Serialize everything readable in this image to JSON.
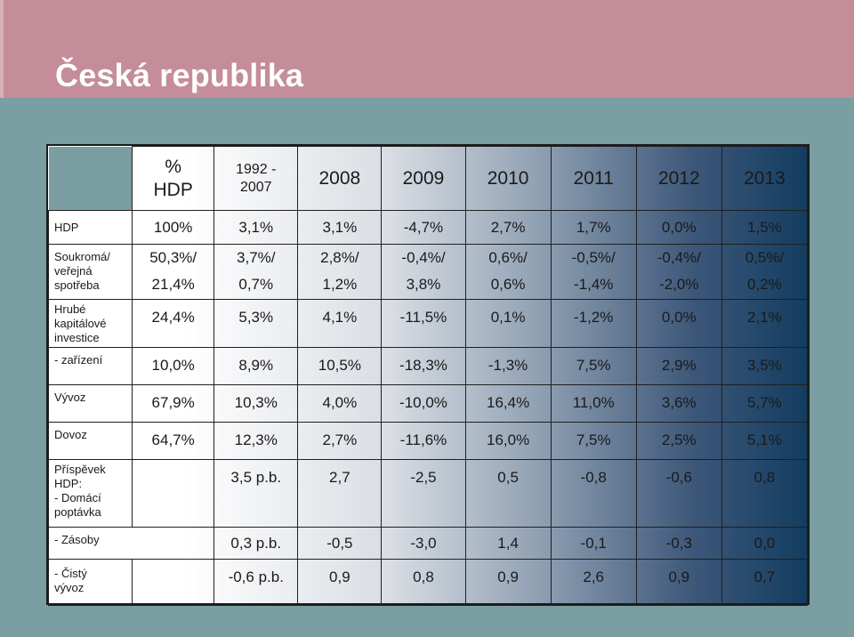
{
  "slide": {
    "title": "Česká republika"
  },
  "table": {
    "header": {
      "unit_line1": "%",
      "unit_line2": "HDP",
      "period_line1": "1992 -",
      "period_line2": "2007",
      "years": [
        "2008",
        "2009",
        "2010",
        "2011",
        "2012",
        "2013"
      ]
    },
    "rows": {
      "hdp": {
        "label": "HDP",
        "share": "100%",
        "period": "3,1%",
        "years": [
          "3,1%",
          "-4,7%",
          "2,7%",
          "1,7%",
          "0,0%",
          "1,5%"
        ]
      },
      "spotreba": {
        "label_l1": "Soukromá/",
        "label_l2": "veřejná",
        "label_l3": "spotřeba",
        "share_l1": "50,3%/",
        "share_l2": "21,4%",
        "period_l1": "3,7%/",
        "period_l2": "0,7%",
        "years_l1": [
          "2,8%/",
          "-0,4%/",
          "0,6%/",
          "-0,5%/",
          "-0,4%/",
          "0,5%/"
        ],
        "years_l2": [
          "1,2%",
          "3,8%",
          "0,6%",
          "-1,4%",
          "-2,0%",
          "0,2%"
        ]
      },
      "investice": {
        "label_l1": "Hrubé",
        "label_l2": "kapitálové",
        "label_l3": "investice",
        "share": "24,4%",
        "period": "5,3%",
        "years": [
          "4,1%",
          "-11,5%",
          "0,1%",
          "-1,2%",
          "0,0%",
          "2,1%"
        ]
      },
      "zarizeni": {
        "label": "- zařízení",
        "share": "10,0%",
        "period": "8,9%",
        "years": [
          "10,5%",
          "-18,3%",
          "-1,3%",
          "7,5%",
          "2,9%",
          "3,5%"
        ]
      },
      "vyvoz": {
        "label": "Vývoz",
        "share": "67,9%",
        "period": "10,3%",
        "years": [
          "4,0%",
          "-10,0%",
          "16,4%",
          "11,0%",
          "3,6%",
          "5,7%"
        ]
      },
      "dovoz": {
        "label": "Dovoz",
        "share": "64,7%",
        "period": "12,3%",
        "years": [
          "2,7%",
          "-11,6%",
          "16,0%",
          "7,5%",
          "2,5%",
          "5,1%"
        ]
      },
      "domaci": {
        "label_l1": "Příspěvek",
        "label_l2": "HDP:",
        "label_l3": "- Domácí",
        "label_l4": "poptávka",
        "period": "3,5 p.b.",
        "years": [
          "2,7",
          "-2,5",
          "0,5",
          "-0,8",
          "-0,6",
          "0,8"
        ]
      },
      "zasoby": {
        "label": "- Zásoby",
        "period": "0,3 p.b.",
        "years": [
          "-0,5",
          "-3,0",
          "1,4",
          "-0,1",
          "-0,3",
          "0,0"
        ]
      },
      "cisty": {
        "label_l1": "- Čistý",
        "label_l2": "vývoz",
        "period": "-0,6 p.b.",
        "years": [
          "0,9",
          "0,8",
          "0,9",
          "2,6",
          "0,9",
          "0,7"
        ]
      }
    }
  }
}
